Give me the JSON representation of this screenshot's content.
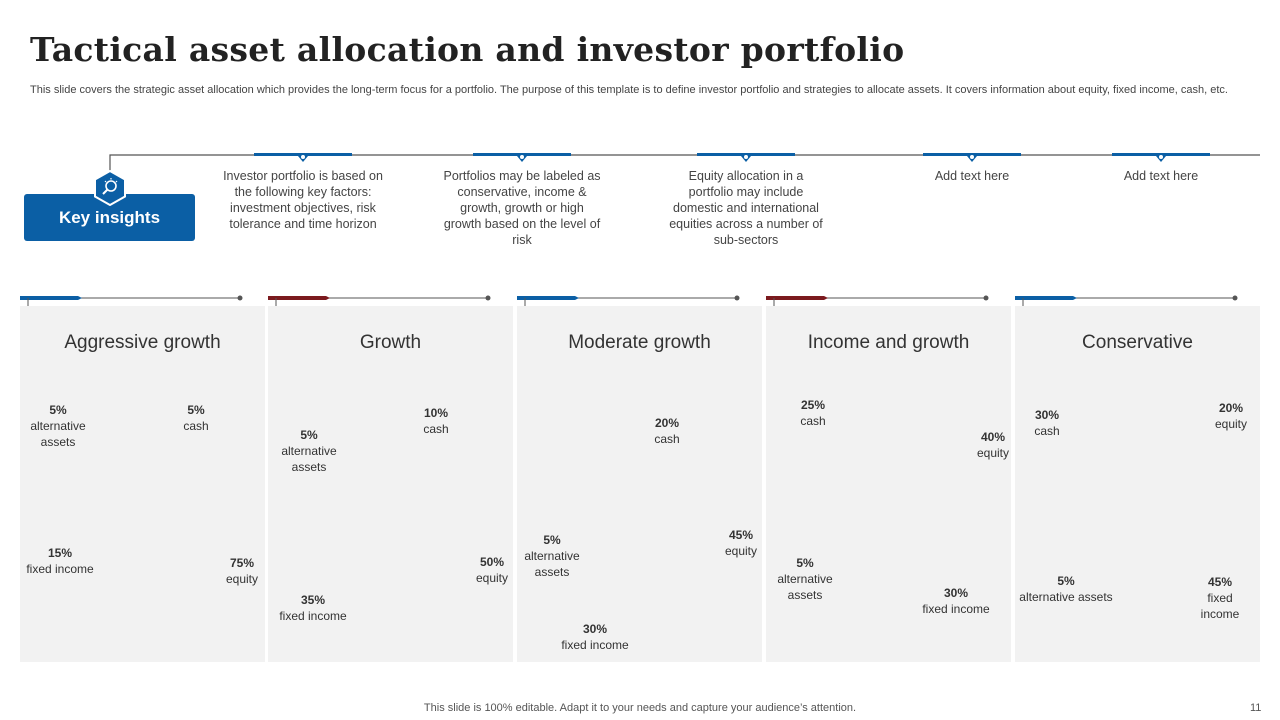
{
  "title": "Tactical asset allocation and investor portfolio",
  "subtitle": "This slide covers the strategic asset allocation which provides the long-term focus for a portfolio. The purpose of this template is to define investor portfolio and strategies to allocate assets. It covers information about equity, fixed income, cash, etc.",
  "key_insights": {
    "label": "Key insights",
    "icon": "lightbulb-search-icon"
  },
  "insights": [
    "Investor portfolio is based on the following key factors: investment objectives, risk tolerance and time horizon",
    "Portfolios may be labeled as conservative, income & growth, growth or high growth based on the level of risk",
    "Equity allocation in a portfolio may include domestic and international equities across a number of sub-sectors",
    "Add text here",
    "Add text here"
  ],
  "colors": {
    "blue": "#0b5fa5",
    "red": "#7b1a1e"
  },
  "chart_data": [
    {
      "type": "pie",
      "title": "Aggressive growth",
      "accent": "#0b5fa5",
      "slices": [
        {
          "label": "equity",
          "value": 75,
          "text": "75%",
          "color": "#0b5fa5"
        },
        {
          "label": "fixed income",
          "value": 15,
          "text": "15%",
          "color": "#c5e3fa"
        },
        {
          "label": "alternative assets",
          "value": 5,
          "text": "5%",
          "color": "#7ec4f5"
        },
        {
          "label": "cash",
          "value": 5,
          "text": "5%",
          "color": "#39a6f0"
        }
      ]
    },
    {
      "type": "pie",
      "title": "Growth",
      "accent": "#7b1a1e",
      "slices": [
        {
          "label": "equity",
          "value": 50,
          "text": "50%",
          "color": "#7b1a1e"
        },
        {
          "label": "fixed income",
          "value": 35,
          "text": "35%",
          "color": "#f2c4c6"
        },
        {
          "label": "alternative assets",
          "value": 5,
          "text": "5%",
          "color": "#e88a8e"
        },
        {
          "label": "cash",
          "value": 10,
          "text": "10%",
          "color": "#d9474d"
        }
      ]
    },
    {
      "type": "pie",
      "title": "Moderate growth",
      "accent": "#0b5fa5",
      "slices": [
        {
          "label": "equity",
          "value": 45,
          "text": "45%",
          "color": "#0b5fa5"
        },
        {
          "label": "fixed income",
          "value": 30,
          "text": "30%",
          "color": "#c5e3fa"
        },
        {
          "label": "alternative assets",
          "value": 5,
          "text": "5%",
          "color": "#7ec4f5"
        },
        {
          "label": "cash",
          "value": 20,
          "text": "20%",
          "color": "#39a6f0"
        }
      ]
    },
    {
      "type": "pie",
      "title": "Income and growth",
      "accent": "#7b1a1e",
      "slices": [
        {
          "label": "equity",
          "value": 40,
          "text": "40%",
          "color": "#7b1a1e"
        },
        {
          "label": "fixed income",
          "value": 30,
          "text": "30%",
          "color": "#f2c4c6"
        },
        {
          "label": "alternative assets",
          "value": 5,
          "text": "5%",
          "color": "#e88a8e"
        },
        {
          "label": "cash",
          "value": 25,
          "text": "25%",
          "color": "#d9474d"
        }
      ]
    },
    {
      "type": "pie",
      "title": "Conservative",
      "accent": "#0b5fa5",
      "slices": [
        {
          "label": "equity",
          "value": 20,
          "text": "20%",
          "color": "#39a6f0"
        },
        {
          "label": "fixed income",
          "value": 45,
          "text": "45%",
          "color": "#0b5fa5"
        },
        {
          "label": "alternative assets",
          "value": 5,
          "text": "5%",
          "color": "#c5e3fa"
        },
        {
          "label": "cash",
          "value": 30,
          "text": "30%",
          "color": "#7ec4f5"
        }
      ]
    }
  ],
  "footer": "This slide is 100% editable. Adapt it to your needs and capture your audience’s attention.",
  "page_number": "11"
}
